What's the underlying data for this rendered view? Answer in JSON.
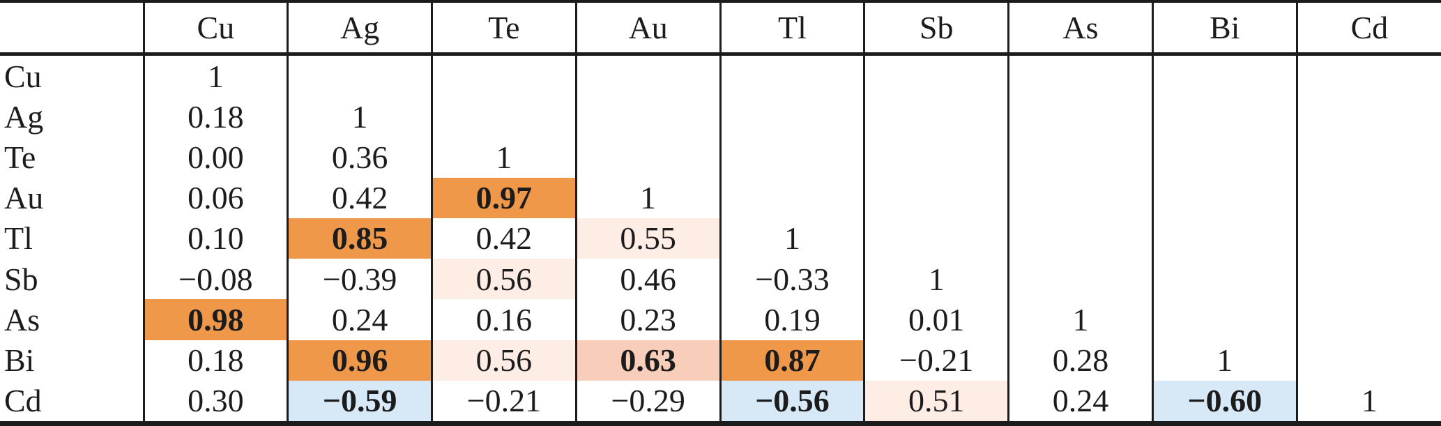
{
  "table": {
    "column_headers": [
      "Cu",
      "Ag",
      "Te",
      "Au",
      "Tl",
      "Sb",
      "As",
      "Bi",
      "Cd"
    ],
    "corner_label": "",
    "rows": [
      {
        "label": "Cu",
        "cells": [
          {
            "v": "1"
          }
        ]
      },
      {
        "label": "Ag",
        "cells": [
          {
            "v": "0.18"
          },
          {
            "v": "1"
          }
        ]
      },
      {
        "label": "Te",
        "cells": [
          {
            "v": "0.00"
          },
          {
            "v": "0.36"
          },
          {
            "v": "1"
          }
        ]
      },
      {
        "label": "Au",
        "cells": [
          {
            "v": "0.06"
          },
          {
            "v": "0.42"
          },
          {
            "v": "0.97",
            "bg": "strong_positive",
            "bold": true
          },
          {
            "v": "1"
          }
        ]
      },
      {
        "label": "Tl",
        "cells": [
          {
            "v": "0.10"
          },
          {
            "v": "0.85",
            "bg": "strong_positive",
            "bold": true
          },
          {
            "v": "0.42"
          },
          {
            "v": "0.55",
            "bg": "weak_positive"
          },
          {
            "v": "1"
          }
        ]
      },
      {
        "label": "Sb",
        "cells": [
          {
            "v": "−0.08"
          },
          {
            "v": "−0.39"
          },
          {
            "v": "0.56",
            "bg": "weak_positive"
          },
          {
            "v": "0.46"
          },
          {
            "v": "−0.33"
          },
          {
            "v": "1"
          }
        ]
      },
      {
        "label": "As",
        "cells": [
          {
            "v": "0.98",
            "bg": "strong_positive",
            "bold": true
          },
          {
            "v": "0.24"
          },
          {
            "v": "0.16"
          },
          {
            "v": "0.23"
          },
          {
            "v": "0.19"
          },
          {
            "v": "0.01"
          },
          {
            "v": "1"
          }
        ]
      },
      {
        "label": "Bi",
        "cells": [
          {
            "v": "0.18"
          },
          {
            "v": "0.96",
            "bg": "strong_positive",
            "bold": true
          },
          {
            "v": "0.56",
            "bg": "weak_positive"
          },
          {
            "v": "0.63",
            "bg": "moderate_positive",
            "bold": true
          },
          {
            "v": "0.87",
            "bg": "strong_positive",
            "bold": true
          },
          {
            "v": "−0.21"
          },
          {
            "v": "0.28"
          },
          {
            "v": "1"
          }
        ]
      },
      {
        "label": "Cd",
        "cells": [
          {
            "v": "0.30"
          },
          {
            "v": "−0.59",
            "bg": "negative",
            "bold": true
          },
          {
            "v": "−0.21"
          },
          {
            "v": "−0.29"
          },
          {
            "v": "−0.56",
            "bg": "negative",
            "bold": true
          },
          {
            "v": "0.51",
            "bg": "weak_positive"
          },
          {
            "v": "0.24"
          },
          {
            "v": "−0.60",
            "bg": "negative",
            "bold": true
          },
          {
            "v": "1"
          }
        ]
      }
    ]
  },
  "colors": {
    "strong_positive": "#F0984A",
    "moderate_positive": "#F8CEBB",
    "weak_positive": "#FDEDE5",
    "negative": "#D7E8F7",
    "border": "#1C1C1C",
    "text": "#1C1C1C"
  },
  "chart_data": {
    "type": "heatmap",
    "description": "Lower-triangle correlation matrix of elements",
    "elements": [
      "Cu",
      "Ag",
      "Te",
      "Au",
      "Tl",
      "Sb",
      "As",
      "Bi",
      "Cd"
    ],
    "matrix_lower_triangle": [
      [
        1
      ],
      [
        0.18,
        1
      ],
      [
        0.0,
        0.36,
        1
      ],
      [
        0.06,
        0.42,
        0.97,
        1
      ],
      [
        0.1,
        0.85,
        0.42,
        0.55,
        1
      ],
      [
        -0.08,
        -0.39,
        0.56,
        0.46,
        -0.33,
        1
      ],
      [
        0.98,
        0.24,
        0.16,
        0.23,
        0.19,
        0.01,
        1
      ],
      [
        0.18,
        0.96,
        0.56,
        0.63,
        0.87,
        -0.21,
        0.28,
        1
      ],
      [
        0.3,
        -0.59,
        -0.21,
        -0.29,
        -0.56,
        0.51,
        0.24,
        -0.6,
        1
      ]
    ],
    "highlight_rules": {
      "strong_positive_orange": [
        0.85,
        0.87,
        0.96,
        0.97,
        0.98
      ],
      "moderate_positive_salmon": [
        0.63
      ],
      "weak_positive_light_pink": [
        0.51,
        0.55,
        0.56
      ],
      "negative_light_blue": [
        -0.56,
        -0.59,
        -0.6
      ]
    },
    "legend_position": "none",
    "grid": "vertical lines between all columns; horizontal rules at top, below header, and bottom"
  }
}
